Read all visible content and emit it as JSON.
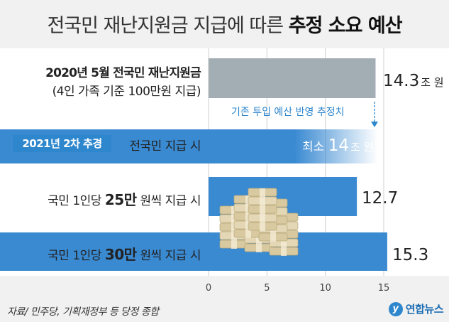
{
  "title_normal": "전국민 재난지원금 지급에 따른",
  "title_bold": "추정 소요 예산",
  "chart_data": {
    "type": "bar",
    "orientation": "horizontal",
    "xlim": [
      0,
      16
    ],
    "xticks": [
      "0",
      "5",
      "10",
      "15"
    ],
    "xtick_values": [
      0,
      5,
      10,
      15
    ],
    "rows": [
      {
        "label_line1": "2020년 5월 전국민 재난지원금",
        "label_line2": "(4인 가족 기준 100만원 지급)",
        "value": 14.3,
        "value_text": "14.3",
        "unit": "조 원",
        "color": "#a3aeb4"
      },
      {
        "badge": "2021년 2차 추경",
        "label": "전국민 지급 시",
        "value": 14,
        "value_prefix": "최소",
        "value_text": "14",
        "unit": "조 원",
        "color": "#3a8ad2"
      },
      {
        "label_pre": "국민 1인당",
        "label_bold": "25만",
        "label_post": "원씩 지급 시",
        "value": 12.7,
        "value_text": "12.7",
        "color": "#3a8ad2"
      },
      {
        "label_pre": "국민 1인당",
        "label_bold": "30만",
        "label_post": "원씩 지급 시",
        "value": 15.3,
        "value_text": "15.3",
        "color": "#3a8ad2"
      }
    ],
    "annotation": "기존 투입 예산 반영 추정치"
  },
  "source": "자료/ 민주당, 기획재정부 등 당정 종합",
  "brand": "연합뉴스",
  "brand_mark": "y"
}
